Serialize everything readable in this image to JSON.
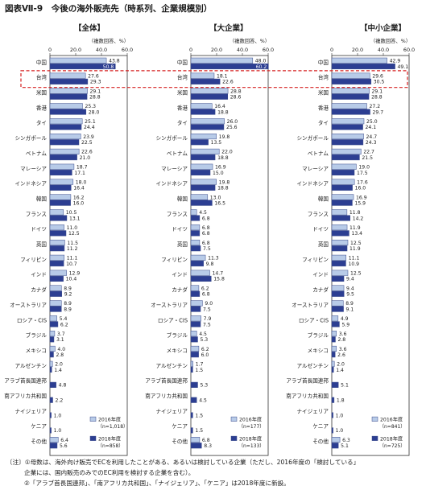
{
  "title": "図表Ⅶ-9　今後の海外販売先（時系列、企業規模別）",
  "notes": [
    "〔注〕①母数は、海外向け販売でECを利用したことがある、あるいは検討している企業（ただし、2016年度の「検討している」",
    "企業には、国内販売のみでのEC利用を検討する企業を含む）。",
    "②「アラブ首長国連邦」、「南アフリカ共和国」、「ナイジェリア」、「ケニア」は2018年度に新設。"
  ],
  "colors": {
    "y2016": "#b8cbe8",
    "y2018": "#2c3e92",
    "border": "#3a4a8a",
    "highlight": "#d62020"
  },
  "chart_data": [
    {
      "type": "bar",
      "orientation": "horizontal",
      "title": "【全体】",
      "unit_label": "（複数回答、%）",
      "xlim": [
        0,
        60
      ],
      "xticks": [
        "0",
        "20.0",
        "40.0",
        "60.0"
      ],
      "categories": [
        "中国",
        "台湾",
        "米国",
        "香港",
        "タイ",
        "シンガポール",
        "ベトナム",
        "マレーシア",
        "インドネシア",
        "韓国",
        "フランス",
        "ドイツ",
        "英国",
        "フィリピン",
        "インド",
        "カナダ",
        "オーストラリア",
        "ロシア・CIS",
        "ブラジル",
        "メキシコ",
        "アルゼンチン",
        "アラブ首長国連邦",
        "南アフリカ共和国",
        "ナイジェリア",
        "ケニア",
        "その他"
      ],
      "series": [
        {
          "name": "2016年度",
          "n_label": "（n=1,018）",
          "values": [
            43.8,
            27.6,
            29.1,
            25.3,
            25.1,
            23.9,
            22.6,
            18.7,
            18.0,
            16.2,
            10.5,
            11.0,
            11.5,
            11.1,
            12.9,
            8.9,
            8.9,
            5.4,
            3.7,
            4.0,
            2.0,
            null,
            null,
            null,
            null,
            6.4
          ]
        },
        {
          "name": "2018年度",
          "n_label": "（n=858）",
          "values": [
            50.8,
            29.3,
            28.8,
            28.0,
            24.4,
            22.5,
            21.0,
            17.1,
            16.4,
            16.0,
            13.1,
            12.5,
            11.2,
            10.7,
            10.4,
            9.2,
            8.9,
            6.2,
            3.1,
            2.8,
            1.4,
            4.8,
            2.2,
            1.0,
            1.0,
            5.6
          ]
        }
      ]
    },
    {
      "type": "bar",
      "orientation": "horizontal",
      "title": "【大企業】",
      "unit_label": "（複数回答、%）",
      "xlim": [
        0,
        60
      ],
      "xticks": [
        "0",
        "20.0",
        "40.0",
        "60.0"
      ],
      "categories": [
        "中国",
        "台湾",
        "米国",
        "香港",
        "タイ",
        "シンガポール",
        "ベトナム",
        "マレーシア",
        "インドネシア",
        "韓国",
        "フランス",
        "ドイツ",
        "英国",
        "フィリピン",
        "インド",
        "カナダ",
        "オーストラリア",
        "ロシア・CIS",
        "ブラジル",
        "メキシコ",
        "アルゼンチン",
        "アラブ首長国連邦",
        "南アフリカ共和国",
        "ナイジェリア",
        "ケニア",
        "その他"
      ],
      "series": [
        {
          "name": "2016年度",
          "n_label": "（n=177）",
          "values": [
            48.0,
            18.1,
            28.8,
            16.4,
            26.0,
            19.8,
            22.0,
            16.9,
            19.8,
            13.0,
            4.5,
            6.8,
            6.8,
            11.3,
            14.7,
            6.2,
            9.0,
            7.9,
            4.5,
            6.2,
            1.7,
            null,
            null,
            null,
            null,
            6.8
          ]
        },
        {
          "name": "2018年度",
          "n_label": "（n=133）",
          "values": [
            60.2,
            22.6,
            28.6,
            18.8,
            25.6,
            13.5,
            18.8,
            15.0,
            18.8,
            16.5,
            6.8,
            6.8,
            7.5,
            9.8,
            15.8,
            6.8,
            7.5,
            7.5,
            5.3,
            6.0,
            1.5,
            5.3,
            4.5,
            1.5,
            1.5,
            8.3
          ]
        }
      ]
    },
    {
      "type": "bar",
      "orientation": "horizontal",
      "title": "【中小企業】",
      "unit_label": "（複数回答、%）",
      "xlim": [
        0,
        60
      ],
      "xticks": [
        "0",
        "20.0",
        "40.0",
        "60.0"
      ],
      "categories": [
        "中国",
        "台湾",
        "米国",
        "香港",
        "タイ",
        "シンガポール",
        "ベトナム",
        "マレーシア",
        "インドネシア",
        "韓国",
        "フランス",
        "ドイツ",
        "英国",
        "フィリピン",
        "インド",
        "カナダ",
        "オーストラリア",
        "ロシア・CIS",
        "ブラジル",
        "メキシコ",
        "アルゼンチン",
        "アラブ首長国連邦",
        "南アフリカ共和国",
        "ナイジェリア",
        "ケニア",
        "その他"
      ],
      "series": [
        {
          "name": "2016年度",
          "n_label": "（n=841）",
          "values": [
            42.9,
            29.6,
            29.1,
            27.2,
            25.0,
            24.7,
            22.7,
            19.0,
            17.6,
            16.9,
            11.8,
            11.9,
            12.5,
            11.1,
            12.5,
            9.4,
            8.9,
            4.9,
            3.6,
            3.6,
            2.0,
            null,
            null,
            null,
            null,
            6.3
          ]
        },
        {
          "name": "2018年度",
          "n_label": "（n=725）",
          "values": [
            49.1,
            30.5,
            28.8,
            29.7,
            24.1,
            24.3,
            21.5,
            17.5,
            16.0,
            15.9,
            14.2,
            13.4,
            11.9,
            10.9,
            9.4,
            9.5,
            9.1,
            5.9,
            2.8,
            2.6,
            1.4,
            5.1,
            1.8,
            1.0,
            1.0,
            5.1
          ]
        }
      ]
    }
  ]
}
